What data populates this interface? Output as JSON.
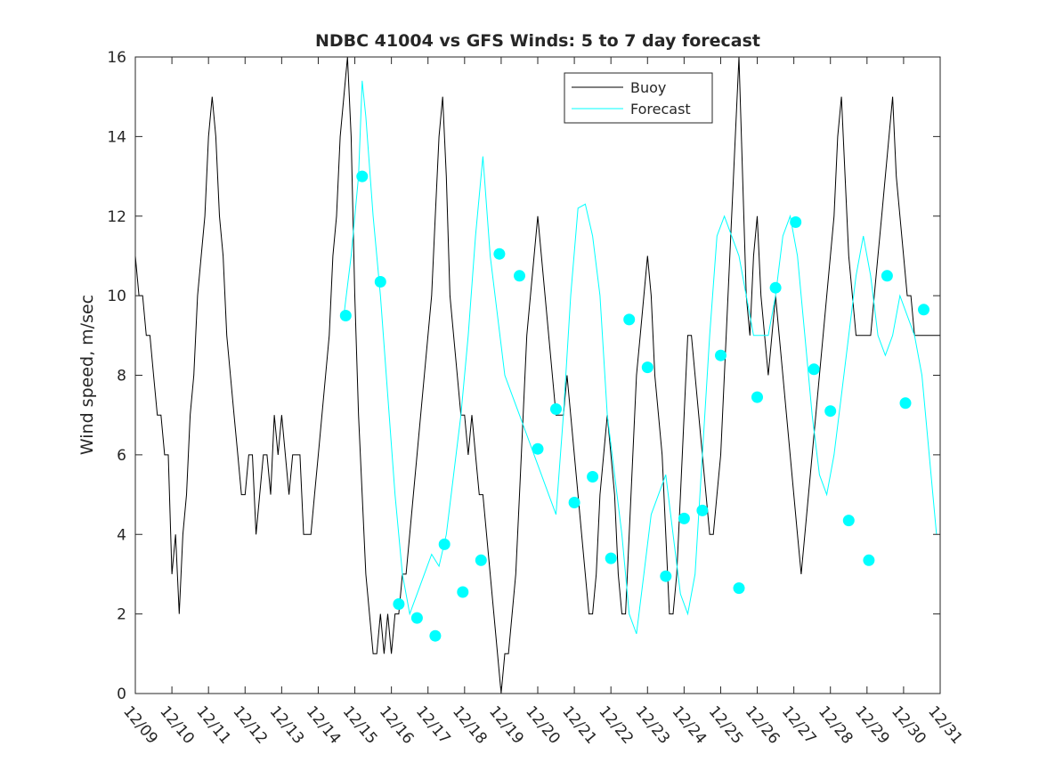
{
  "chart_data": {
    "type": "line",
    "title": "NDBC 41004 vs GFS Winds: 5 to 7 day forecast",
    "xlabel": "",
    "ylabel": "Wind speed, m/sec",
    "x_axis": "date (days from 12/09)",
    "xlim": [
      0,
      22
    ],
    "ylim": [
      0,
      16
    ],
    "x_tick_values": [
      0,
      1,
      2,
      3,
      4,
      5,
      6,
      7,
      8,
      9,
      10,
      11,
      12,
      13,
      14,
      15,
      16,
      17,
      18,
      19,
      20,
      21,
      22
    ],
    "x_tick_labels": [
      "12/09",
      "12/10",
      "12/11",
      "12/12",
      "12/13",
      "12/14",
      "12/15",
      "12/16",
      "12/17",
      "12/18",
      "12/19",
      "12/20",
      "12/21",
      "12/22",
      "12/23",
      "12/24",
      "12/25",
      "12/26",
      "12/27",
      "12/28",
      "12/29",
      "12/30",
      "12/31"
    ],
    "y_ticks": [
      0,
      2,
      4,
      6,
      8,
      10,
      12,
      14,
      16
    ],
    "grid": false,
    "legend": {
      "position": "top-center-right",
      "entries": [
        "Buoy",
        "Forecast"
      ]
    },
    "colors": {
      "buoy": "#000000",
      "forecast": "#00ffff",
      "markers": "#00ffff",
      "axes": "#262626"
    },
    "series": [
      {
        "name": "Buoy",
        "style": "line",
        "color": "#000000",
        "x": [
          0,
          0.1,
          0.2,
          0.3,
          0.4,
          0.5,
          0.6,
          0.7,
          0.8,
          0.9,
          1.0,
          1.1,
          1.2,
          1.3,
          1.4,
          1.5,
          1.6,
          1.7,
          1.8,
          1.9,
          2.0,
          2.1,
          2.2,
          2.3,
          2.4,
          2.5,
          2.6,
          2.7,
          2.8,
          2.9,
          3.0,
          3.1,
          3.2,
          3.3,
          3.4,
          3.5,
          3.6,
          3.7,
          3.8,
          3.9,
          4.0,
          4.1,
          4.2,
          4.3,
          4.4,
          4.5,
          4.6,
          4.7,
          4.8,
          4.9,
          5.0,
          5.1,
          5.2,
          5.3,
          5.4,
          5.5,
          5.6,
          5.7,
          5.8,
          5.9,
          6.0,
          6.1,
          6.2,
          6.3,
          6.4,
          6.5,
          6.6,
          6.7,
          6.8,
          6.9,
          7.0,
          7.1,
          7.2,
          7.3,
          7.4,
          7.5,
          7.6,
          7.7,
          7.8,
          7.9,
          8.0,
          8.1,
          8.2,
          8.3,
          8.4,
          8.5,
          8.6,
          8.7,
          8.8,
          8.9,
          9.0,
          9.1,
          9.2,
          9.3,
          9.4,
          9.5,
          9.6,
          9.7,
          9.8,
          9.9,
          10.0,
          10.1,
          10.2,
          10.3,
          10.4,
          10.5,
          10.6,
          10.7,
          10.8,
          10.9,
          11.0,
          11.1,
          11.2,
          11.3,
          11.4,
          11.5,
          11.6,
          11.7,
          11.8,
          11.9,
          12.0,
          12.1,
          12.2,
          12.3,
          12.4,
          12.5,
          12.6,
          12.7,
          12.8,
          12.9,
          13.0,
          13.1,
          13.2,
          13.3,
          13.4,
          13.5,
          13.6,
          13.7,
          13.8,
          13.9,
          14.0,
          14.1,
          14.2,
          14.3,
          14.4,
          14.5,
          14.6,
          14.7,
          14.8,
          14.9,
          15.0,
          15.1,
          15.2,
          15.3,
          15.4,
          15.5,
          15.6,
          15.7,
          15.8,
          15.9,
          16.0,
          16.1,
          16.2,
          16.3,
          16.4,
          16.5,
          16.6,
          16.7,
          16.8,
          16.9,
          17.0,
          17.1,
          17.2,
          17.3,
          17.4,
          17.5,
          17.6,
          17.7,
          17.8,
          17.9,
          18.0,
          18.1,
          18.2,
          18.3,
          18.4,
          18.5,
          18.6,
          18.7,
          18.8,
          18.9,
          19.0,
          19.1,
          19.2,
          19.3,
          19.4,
          19.5,
          19.6,
          19.7,
          19.8,
          19.9,
          20.0,
          20.1,
          20.2,
          20.3,
          20.4,
          20.5,
          20.6,
          20.7,
          20.8,
          20.9,
          21.0,
          21.1,
          21.2,
          21.3,
          21.4,
          21.5,
          21.6,
          21.7,
          21.8,
          21.9,
          22.0
        ],
        "y": [
          11,
          10,
          10,
          9,
          9,
          8,
          7,
          7,
          6,
          6,
          3,
          4,
          2,
          4,
          5,
          7,
          8,
          10,
          11,
          12,
          14,
          15,
          14,
          12,
          11,
          9,
          8,
          7,
          6,
          5,
          5,
          6,
          6,
          4,
          5,
          6,
          6,
          5,
          7,
          6,
          7,
          6,
          5,
          6,
          6,
          6,
          4,
          4,
          4,
          5,
          6,
          7,
          8,
          9,
          11,
          12,
          14,
          15,
          16,
          14,
          10,
          7,
          5,
          3,
          2,
          1,
          1,
          2,
          1,
          2,
          1,
          2,
          2,
          3,
          3,
          4,
          5,
          6,
          7,
          8,
          9,
          10,
          12,
          14,
          15,
          13,
          10,
          9,
          8,
          7,
          7,
          6,
          7,
          6,
          5,
          5,
          4,
          3,
          2,
          1,
          0,
          1,
          1,
          2,
          3,
          5,
          7,
          9,
          10,
          11,
          12,
          11,
          10,
          9,
          8,
          7,
          7,
          7,
          8,
          7,
          6,
          5,
          4,
          3,
          2,
          2,
          3,
          5,
          6,
          7,
          6,
          5,
          3,
          2,
          2,
          4,
          6,
          8,
          9,
          10,
          11,
          10,
          8,
          7,
          6,
          4,
          2,
          2,
          3,
          5,
          7,
          9,
          9,
          8,
          7,
          6,
          5,
          4,
          4,
          5,
          6,
          8,
          10,
          12,
          14,
          16,
          13,
          10,
          9,
          11,
          12,
          10,
          9,
          8,
          9,
          10,
          9,
          8,
          7,
          6,
          5,
          4,
          3,
          4,
          5,
          6,
          7,
          8,
          9,
          10,
          11,
          12,
          14,
          15,
          13,
          11,
          10,
          9,
          9,
          9,
          9,
          9,
          10,
          11,
          12,
          13,
          14,
          15,
          13,
          12,
          11,
          10,
          10,
          9,
          9,
          9,
          9,
          9,
          9,
          9,
          9
        ]
      },
      {
        "name": "Forecast",
        "style": "line",
        "color": "#00ffff",
        "note": "multiple overlaid forecast traces, 5 to 7 day lead",
        "x": [
          5.7,
          5.9,
          6.1,
          6.2,
          6.3,
          6.5,
          6.7,
          6.9,
          7.1,
          7.3,
          7.5,
          7.7,
          7.9,
          8.1,
          8.3,
          8.5,
          8.7,
          8.9,
          9.1,
          9.3,
          9.5,
          9.7,
          9.9,
          10.1,
          10.3,
          10.5,
          10.7,
          10.9,
          11.1,
          11.3,
          11.5,
          11.7,
          11.9,
          12.1,
          12.3,
          12.5,
          12.7,
          12.9,
          13.1,
          13.3,
          13.5,
          13.7,
          13.9,
          14.1,
          14.3,
          14.5,
          14.7,
          14.9,
          15.1,
          15.3,
          15.5,
          15.7,
          15.9,
          16.1,
          16.3,
          16.5,
          16.7,
          16.9,
          17.1,
          17.3,
          17.5,
          17.7,
          17.9,
          18.1,
          18.3,
          18.5,
          18.7,
          18.9,
          19.1,
          19.3,
          19.5,
          19.7,
          19.9,
          20.1,
          20.3,
          20.5,
          20.7,
          20.9,
          21.1,
          21.3,
          21.5,
          21.7,
          21.9
        ],
        "y": [
          9.5,
          11,
          13,
          15.4,
          14.5,
          12,
          10,
          7.5,
          5,
          3,
          2,
          2.5,
          3,
          3.5,
          3.2,
          4,
          5.5,
          7,
          9,
          11.5,
          13.5,
          11,
          9.5,
          8,
          7.5,
          7,
          6.5,
          6,
          5.5,
          5,
          4.5,
          7,
          10,
          12.2,
          12.3,
          11.5,
          10,
          7,
          5.5,
          4,
          2,
          1.5,
          3,
          4.5,
          5,
          5.5,
          4,
          2.5,
          2,
          3,
          6,
          9,
          11.5,
          12,
          11.5,
          11,
          10,
          9,
          9,
          9,
          10,
          11.5,
          12,
          11,
          9,
          7,
          5.5,
          5,
          6,
          7.5,
          9,
          10.5,
          11.5,
          10.5,
          9,
          8.5,
          9,
          10,
          9.5,
          9,
          8,
          6,
          4
        ]
      },
      {
        "name": "",
        "style": "markers",
        "color": "#00ffff",
        "x": [
          5.75,
          6.2,
          6.7,
          7.2,
          7.7,
          8.2,
          8.45,
          8.95,
          9.45,
          9.95,
          10.5,
          11.0,
          11.5,
          12.0,
          12.5,
          13.0,
          13.5,
          14.0,
          14.5,
          15.0,
          15.5,
          16.0,
          16.5,
          17.0,
          17.5,
          18.05,
          18.55,
          19.0,
          19.5,
          20.05,
          20.55,
          21.05,
          21.55
        ],
        "y": [
          9.5,
          13.0,
          10.35,
          2.25,
          1.9,
          1.45,
          3.75,
          2.55,
          3.35,
          11.05,
          10.5,
          6.15,
          7.15,
          4.8,
          5.45,
          3.4,
          9.4,
          8.2,
          2.95,
          4.4,
          4.6,
          8.5,
          2.65,
          7.45,
          10.2,
          11.85,
          8.15,
          7.1,
          4.35,
          3.35,
          10.5,
          7.3,
          9.65
        ]
      }
    ]
  }
}
